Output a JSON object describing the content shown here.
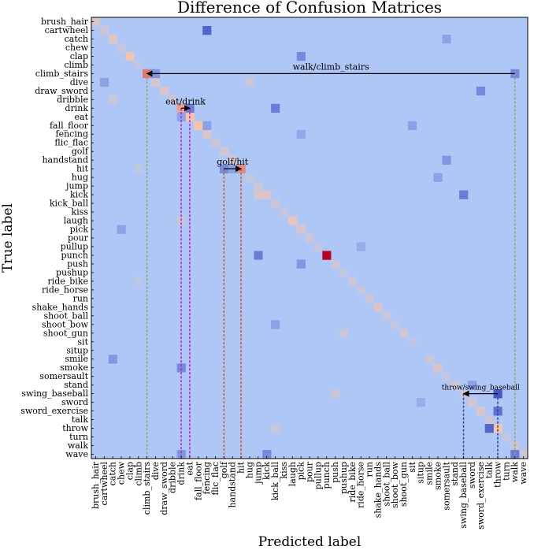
{
  "chart_data": {
    "type": "heatmap",
    "title": "Difference of Confusion Matrices",
    "xlabel": "Predicted label",
    "ylabel": "True label",
    "labels": [
      "brush_hair",
      "cartwheel",
      "catch",
      "chew",
      "clap",
      "climb",
      "climb_stairs",
      "dive",
      "draw_sword",
      "dribble",
      "drink",
      "eat",
      "fall_floor",
      "fencing",
      "flic_flac",
      "golf",
      "handstand",
      "hit",
      "hug",
      "jump",
      "kick",
      "kick_ball",
      "kiss",
      "laugh",
      "pick",
      "pour",
      "pullup",
      "punch",
      "push",
      "pushup",
      "ride_bike",
      "ride_horse",
      "run",
      "shake_hands",
      "shoot_ball",
      "shoot_bow",
      "shoot_gun",
      "sit",
      "situp",
      "smile",
      "smoke",
      "somersault",
      "stand",
      "swing_baseball",
      "sword",
      "sword_exercise",
      "talk",
      "throw",
      "turn",
      "walk",
      "wave"
    ],
    "colormap": {
      "negative": "#3b4cc0",
      "zero": "#aec7f7",
      "positive": "#b40426"
    },
    "value_range": [
      -1,
      1
    ],
    "cells": [
      [
        0,
        0,
        0.3
      ],
      [
        1,
        1,
        0.2
      ],
      [
        2,
        2,
        0.35
      ],
      [
        3,
        3,
        0.15
      ],
      [
        4,
        4,
        0.45
      ],
      [
        5,
        5,
        0.1
      ],
      [
        6,
        6,
        0.7
      ],
      [
        7,
        7,
        0.25
      ],
      [
        8,
        8,
        0.3
      ],
      [
        9,
        9,
        0.2
      ],
      [
        10,
        10,
        0.6
      ],
      [
        11,
        11,
        0.5
      ],
      [
        12,
        12,
        0.5
      ],
      [
        13,
        13,
        0.3
      ],
      [
        14,
        14,
        0.2
      ],
      [
        15,
        15,
        0.25
      ],
      [
        16,
        16,
        0.3
      ],
      [
        17,
        17,
        0.65
      ],
      [
        18,
        18,
        0.15
      ],
      [
        19,
        19,
        0.2
      ],
      [
        20,
        20,
        0.3
      ],
      [
        21,
        21,
        0.2
      ],
      [
        22,
        22,
        0.15
      ],
      [
        23,
        23,
        0.4
      ],
      [
        24,
        24,
        0.3
      ],
      [
        25,
        25,
        0.2
      ],
      [
        26,
        26,
        0.15
      ],
      [
        27,
        27,
        1.0
      ],
      [
        28,
        28,
        0.2
      ],
      [
        29,
        29,
        0.15
      ],
      [
        30,
        30,
        0.2
      ],
      [
        31,
        31,
        0.15
      ],
      [
        32,
        32,
        0.2
      ],
      [
        33,
        33,
        0.3
      ],
      [
        34,
        34,
        0.2
      ],
      [
        35,
        35,
        0.15
      ],
      [
        36,
        36,
        0.25
      ],
      [
        37,
        37,
        0.1
      ],
      [
        39,
        39,
        0.2
      ],
      [
        40,
        40,
        0.3
      ],
      [
        41,
        41,
        0.15
      ],
      [
        42,
        42,
        0.2
      ],
      [
        43,
        43,
        0.2
      ],
      [
        44,
        44,
        0.25
      ],
      [
        45,
        45,
        0.3
      ],
      [
        46,
        46,
        0.2
      ],
      [
        47,
        47,
        0.5
      ],
      [
        48,
        48,
        0.15
      ],
      [
        49,
        49,
        0.2
      ],
      [
        50,
        50,
        0.2
      ],
      [
        6,
        49,
        -0.5
      ],
      [
        6,
        7,
        -0.4
      ],
      [
        10,
        11,
        -0.6
      ],
      [
        11,
        10,
        -0.3
      ],
      [
        17,
        15,
        -0.5
      ],
      [
        17,
        16,
        -0.3
      ],
      [
        1,
        13,
        -0.8
      ],
      [
        43,
        47,
        -0.9
      ],
      [
        45,
        47,
        -0.7
      ],
      [
        47,
        46,
        -0.8
      ],
      [
        27,
        19,
        -0.6
      ],
      [
        20,
        43,
        -0.6
      ],
      [
        10,
        21,
        -0.6
      ],
      [
        50,
        49,
        -0.6
      ],
      [
        50,
        10,
        -0.4
      ],
      [
        50,
        20,
        -0.5
      ],
      [
        7,
        1,
        -0.3
      ],
      [
        8,
        45,
        -0.5
      ],
      [
        4,
        24,
        -0.5
      ],
      [
        39,
        2,
        -0.4
      ],
      [
        12,
        13,
        -0.3
      ],
      [
        16,
        41,
        -0.4
      ],
      [
        20,
        19,
        0.3
      ],
      [
        7,
        18,
        0.2
      ],
      [
        17,
        5,
        0.15
      ],
      [
        24,
        3,
        -0.3
      ],
      [
        2,
        41,
        -0.3
      ],
      [
        13,
        24,
        -0.25
      ],
      [
        35,
        21,
        -0.3
      ],
      [
        26,
        31,
        -0.2
      ],
      [
        42,
        44,
        -0.3
      ],
      [
        44,
        38,
        -0.2
      ],
      [
        40,
        10,
        -0.5
      ],
      [
        28,
        24,
        -0.4
      ],
      [
        23,
        10,
        0.2
      ],
      [
        9,
        2,
        0.2
      ],
      [
        36,
        29,
        0.2
      ],
      [
        47,
        21,
        0.2
      ],
      [
        43,
        28,
        0.2
      ],
      [
        30,
        5,
        0.1
      ],
      [
        12,
        37,
        -0.3
      ],
      [
        18,
        40,
        -0.3
      ]
    ],
    "annotations": [
      {
        "text": "walk/climb_stairs",
        "from": [
          6,
          49
        ],
        "to": [
          6,
          6
        ]
      },
      {
        "text": "eat/drink",
        "from": [
          10,
          10
        ],
        "to": [
          10,
          11
        ]
      },
      {
        "text": "golf/hit",
        "from": [
          17,
          15
        ],
        "to": [
          17,
          17
        ]
      },
      {
        "text": "throw/swing_baseball",
        "from": [
          43,
          47
        ],
        "to": [
          43,
          43
        ]
      }
    ],
    "guides": [
      {
        "col": 6,
        "rows": [
          6,
          50
        ],
        "color": "#8fa66a"
      },
      {
        "col": 49,
        "rows": [
          6,
          50
        ],
        "color": "#8fa66a"
      },
      {
        "col": 10,
        "rows": [
          10,
          50
        ],
        "color": "#b020c8"
      },
      {
        "col": 11,
        "rows": [
          10,
          50
        ],
        "color": "#b020c8"
      },
      {
        "col": 15,
        "rows": [
          17,
          50
        ],
        "color": "#e05020"
      },
      {
        "col": 17,
        "rows": [
          17,
          50
        ],
        "color": "#e05020"
      },
      {
        "col": 43,
        "rows": [
          43,
          50
        ],
        "color": "#334488"
      },
      {
        "col": 47,
        "rows": [
          43,
          50
        ],
        "color": "#334488"
      }
    ],
    "legend": "none",
    "grid": false
  }
}
